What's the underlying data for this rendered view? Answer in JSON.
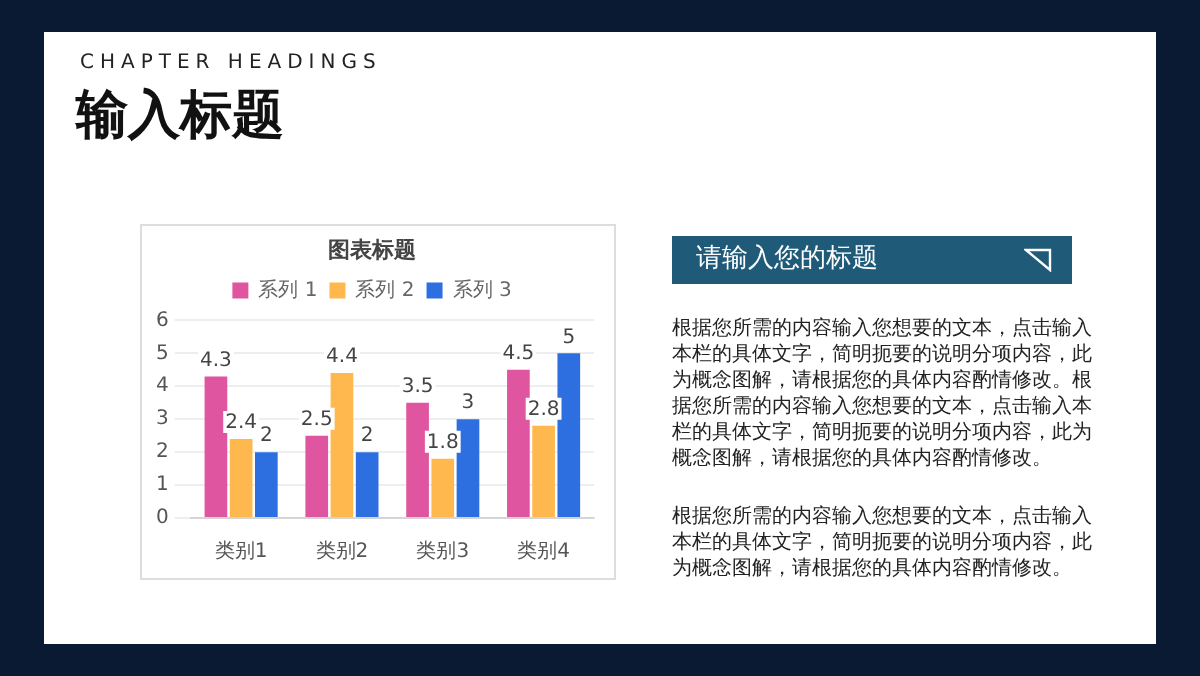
{
  "chart_data": {
    "type": "bar",
    "title": "图表标题",
    "categories": [
      "类别1",
      "类别2",
      "类别3",
      "类别4"
    ],
    "series": [
      {
        "name": "系列 1",
        "color": "#e0559f",
        "values": [
          4.3,
          2.5,
          3.5,
          4.5
        ]
      },
      {
        "name": "系列 2",
        "color": "#ffb84d",
        "values": [
          2.4,
          4.4,
          1.8,
          2.8
        ]
      },
      {
        "name": "系列 3",
        "color": "#2d6fe0",
        "values": [
          2,
          2,
          3,
          5
        ]
      }
    ],
    "ylim": [
      0,
      6
    ],
    "yticks": [
      0,
      1,
      2,
      3,
      4,
      5,
      6
    ],
    "grid": "y",
    "legend": "top",
    "data_labels": true,
    "annotations": [
      "CHAPTER HEADINGS",
      "输入标题",
      "请输入您的标题",
      "根据您所需的内容输入您想要的文本，点击输入本栏的具体文字，简明扼要的说明分项内容，此为概念图解，请根据您的具体内容酌情修改。根据您所需的内容输入您想要的文本，点击输入本栏的具体文字，简明扼要的说明分项内容，此为概念图解，请根据您的具体内容酌情修改。",
      "根据您所需的内容输入您想要的文本，点击输入本栏的具体文字，简明扼要的说明分项内容，此为概念图解，请根据您的具体内容酌情修改。"
    ]
  }
}
